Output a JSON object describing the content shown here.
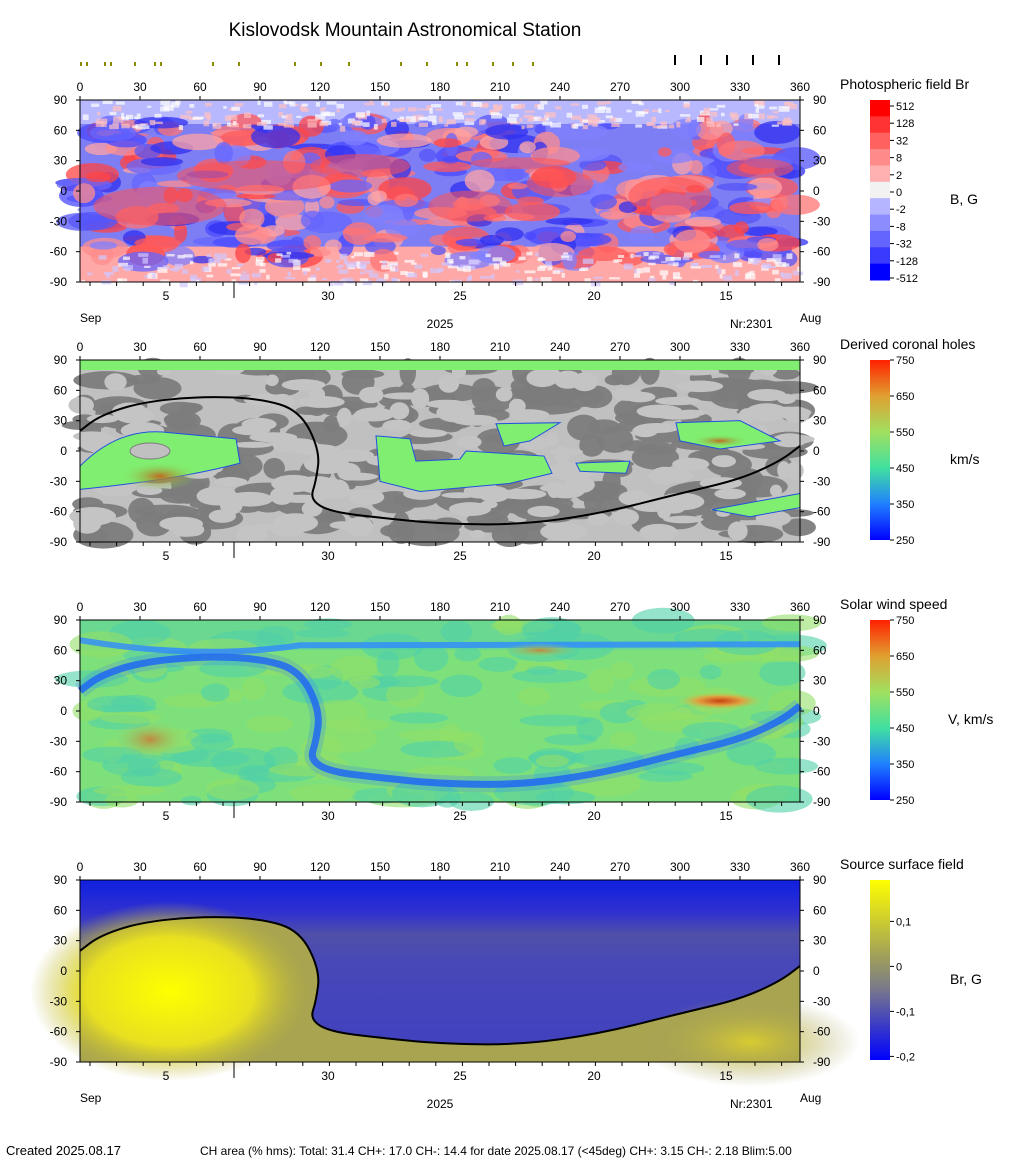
{
  "header": {
    "title": "Kislovodsk Mountain Astronomical Station"
  },
  "axes": {
    "lon_ticks": [
      0,
      30,
      60,
      90,
      120,
      150,
      180,
      210,
      240,
      270,
      300,
      330,
      360
    ],
    "lat_ticks": [
      90,
      60,
      30,
      0,
      -30,
      -60,
      -90
    ],
    "date_ticks": [
      "5",
      "30",
      "25",
      "20",
      "15"
    ],
    "date_tick_lon": [
      43,
      124,
      190,
      257,
      323
    ],
    "month_start": "Sep",
    "month_end": "Aug",
    "year": "2025",
    "rotation": "Nr:2301",
    "range_x": [
      0,
      360
    ],
    "range_y": [
      -90,
      90
    ]
  },
  "markers": {
    "olive_lon": [
      0,
      3,
      12,
      15,
      27,
      37,
      40,
      66,
      79,
      107,
      120,
      134,
      160,
      173,
      188,
      193,
      206,
      216,
      226
    ],
    "black_lon": [
      297,
      310,
      323,
      336,
      349
    ]
  },
  "panels": [
    {
      "id": "photospheric",
      "title": "Photospheric field Br",
      "unit": "B, G",
      "legend": {
        "labels": [
          "512",
          "128",
          "32",
          "8",
          "2",
          "0",
          "-2",
          "-8",
          "-32",
          "-128",
          "-512"
        ],
        "colors": [
          "#ff0000",
          "#ff3333",
          "#ff6060",
          "#ff8a8a",
          "#ffb0b0",
          "#f2f2f2",
          "#b4b4ff",
          "#8c8cff",
          "#6464ff",
          "#3a3aff",
          "#0000ff"
        ]
      }
    },
    {
      "id": "coronal_holes",
      "title": "Derived coronal holes",
      "unit": "km/s",
      "legend": {
        "labels": [
          "750",
          "650",
          "550",
          "450",
          "350",
          "250"
        ]
      }
    },
    {
      "id": "solar_wind",
      "title": "Solar wind speed",
      "unit": "V, km/s",
      "legend": {
        "labels": [
          "750",
          "650",
          "550",
          "450",
          "350",
          "250"
        ]
      }
    },
    {
      "id": "source_surface",
      "title": "Source surface field",
      "unit": "Br, G",
      "legend": {
        "labels": [
          "0,1",
          "0",
          "-0,1",
          "-0,2"
        ]
      }
    }
  ],
  "chart_data": {
    "type": "heatmap",
    "title": "Kislovodsk Mountain Astronomical Station",
    "xlim": [
      0,
      360
    ],
    "ylim": [
      -90,
      90
    ],
    "neutral_line": [
      [
        0,
        20
      ],
      [
        10,
        35
      ],
      [
        30,
        48
      ],
      [
        60,
        54
      ],
      [
        90,
        52
      ],
      [
        110,
        40
      ],
      [
        120,
        0
      ],
      [
        118,
        -30
      ],
      [
        115,
        -48
      ],
      [
        125,
        -60
      ],
      [
        150,
        -66
      ],
      [
        180,
        -72
      ],
      [
        220,
        -73
      ],
      [
        260,
        -62
      ],
      [
        300,
        -42
      ],
      [
        330,
        -28
      ],
      [
        350,
        -10
      ],
      [
        360,
        5
      ]
    ],
    "coronal_holes": [
      {
        "polarity": "+",
        "lon_range": [
          0,
          80
        ],
        "lat_range": [
          -35,
          20
        ]
      },
      {
        "polarity": "-",
        "lon_range": [
          148,
          240
        ],
        "lat_range": [
          -42,
          20
        ]
      },
      {
        "polarity": "-",
        "lon_range": [
          208,
          285
        ],
        "lat_range": [
          -15,
          28
        ]
      },
      {
        "polarity": "+",
        "lon_range": [
          300,
          355
        ],
        "lat_range": [
          5,
          30
        ]
      },
      {
        "polarity": "+",
        "lon_range": [
          310,
          360
        ],
        "lat_range": [
          -60,
          -40
        ]
      },
      {
        "polarity": "-",
        "lon_range": [
          0,
          360
        ],
        "lat_range": [
          75,
          90
        ]
      }
    ],
    "wind_max": {
      "lon": 320,
      "lat": 10,
      "value": 700
    }
  },
  "footer": {
    "created": "Created  2025.08.17",
    "ch_area": "CH area (% hms): Total: 31.4 CH+: 17.0   CH-: 14.4 for date 2025.08.17 (<45deg) CH+: 3.15    CH-: 2.18 Blim:5.00"
  }
}
